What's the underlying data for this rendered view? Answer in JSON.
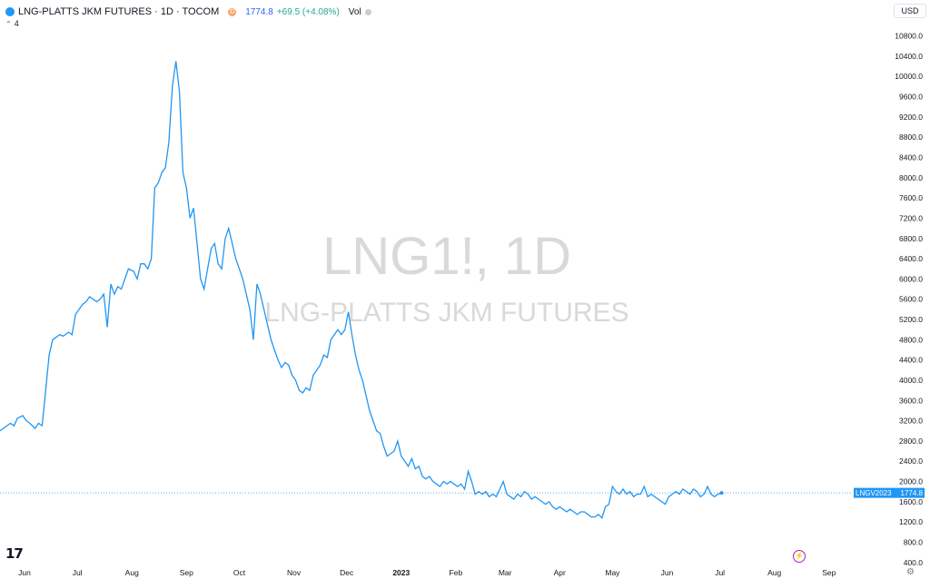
{
  "header": {
    "title": "LNG-PLATTS JKM FUTURES · 1D · TOCOM",
    "d_badge": "D",
    "price": "1774.8",
    "change": "+69.5 (+4.08%)",
    "vol": "Vol",
    "collapse_count": "4",
    "currency": "USD"
  },
  "watermark": {
    "line1": "LNG1!, 1D",
    "line2": "LNG-PLATTS JKM FUTURES"
  },
  "price_label": {
    "symbol": "LNGV2023",
    "value": "1774.8"
  },
  "colors": {
    "line": "#2196f3",
    "label_bg": "#2196f3",
    "watermark": "#d9d9d9",
    "axis_text": "#131722"
  },
  "icons": [
    "tradingview-logo-icon",
    "lightning-icon",
    "settings-icon"
  ],
  "chart_data": {
    "type": "line",
    "title": "",
    "xlabel": "",
    "ylabel": "",
    "ylim": [
      400,
      11000
    ],
    "y_ticks": [
      400,
      800,
      1200,
      1600,
      2000,
      2400,
      2800,
      3200,
      3600,
      4000,
      4400,
      4800,
      5200,
      5600,
      6000,
      6400,
      6800,
      7200,
      7600,
      8000,
      8400,
      8800,
      9200,
      9600,
      10000,
      10400,
      10800
    ],
    "x_ticks": [
      {
        "label": "Jun",
        "date": "2022-06-01"
      },
      {
        "label": "Jul",
        "date": "2022-07-01"
      },
      {
        "label": "Aug",
        "date": "2022-08-01"
      },
      {
        "label": "Sep",
        "date": "2022-09-01"
      },
      {
        "label": "Oct",
        "date": "2022-10-01"
      },
      {
        "label": "Nov",
        "date": "2022-11-01"
      },
      {
        "label": "Dec",
        "date": "2022-12-01"
      },
      {
        "label": "2023",
        "date": "2023-01-01",
        "bold": true
      },
      {
        "label": "Feb",
        "date": "2023-02-01"
      },
      {
        "label": "Mar",
        "date": "2023-03-01"
      },
      {
        "label": "Apr",
        "date": "2023-04-01"
      },
      {
        "label": "May",
        "date": "2023-05-01"
      },
      {
        "label": "Jun",
        "date": "2023-06-01"
      },
      {
        "label": "Jul",
        "date": "2023-07-01"
      },
      {
        "label": "Aug",
        "date": "2023-08-01"
      },
      {
        "label": "Sep",
        "date": "2023-09-01"
      }
    ],
    "last_value": 1774.8,
    "series": [
      {
        "name": "LNGV2023",
        "points": [
          [
            "2022-05-18",
            3000
          ],
          [
            "2022-05-20",
            3050
          ],
          [
            "2022-05-24",
            3150
          ],
          [
            "2022-05-26",
            3100
          ],
          [
            "2022-05-28",
            3250
          ],
          [
            "2022-05-31",
            3300
          ],
          [
            "2022-06-02",
            3200
          ],
          [
            "2022-06-04",
            3150
          ],
          [
            "2022-06-07",
            3050
          ],
          [
            "2022-06-09",
            3150
          ],
          [
            "2022-06-11",
            3100
          ],
          [
            "2022-06-13",
            3800
          ],
          [
            "2022-06-15",
            4500
          ],
          [
            "2022-06-17",
            4800
          ],
          [
            "2022-06-19",
            4850
          ],
          [
            "2022-06-21",
            4900
          ],
          [
            "2022-06-23",
            4870
          ],
          [
            "2022-06-26",
            4950
          ],
          [
            "2022-06-28",
            4900
          ],
          [
            "2022-06-30",
            5300
          ],
          [
            "2022-07-02",
            5400
          ],
          [
            "2022-07-04",
            5500
          ],
          [
            "2022-07-06",
            5550
          ],
          [
            "2022-07-08",
            5650
          ],
          [
            "2022-07-10",
            5600
          ],
          [
            "2022-07-12",
            5550
          ],
          [
            "2022-07-14",
            5600
          ],
          [
            "2022-07-16",
            5700
          ],
          [
            "2022-07-18",
            5050
          ],
          [
            "2022-07-20",
            5900
          ],
          [
            "2022-07-22",
            5700
          ],
          [
            "2022-07-24",
            5850
          ],
          [
            "2022-07-26",
            5800
          ],
          [
            "2022-07-28",
            6000
          ],
          [
            "2022-07-30",
            6200
          ],
          [
            "2022-08-02",
            6150
          ],
          [
            "2022-08-04",
            6000
          ],
          [
            "2022-08-06",
            6300
          ],
          [
            "2022-08-08",
            6300
          ],
          [
            "2022-08-10",
            6200
          ],
          [
            "2022-08-12",
            6400
          ],
          [
            "2022-08-14",
            7800
          ],
          [
            "2022-08-16",
            7900
          ],
          [
            "2022-08-18",
            8100
          ],
          [
            "2022-08-20",
            8200
          ],
          [
            "2022-08-22",
            8700
          ],
          [
            "2022-08-24",
            9800
          ],
          [
            "2022-08-26",
            10300
          ],
          [
            "2022-08-28",
            9700
          ],
          [
            "2022-08-30",
            8100
          ],
          [
            "2022-09-01",
            7800
          ],
          [
            "2022-09-03",
            7200
          ],
          [
            "2022-09-05",
            7400
          ],
          [
            "2022-09-07",
            6700
          ],
          [
            "2022-09-09",
            6000
          ],
          [
            "2022-09-11",
            5800
          ],
          [
            "2022-09-13",
            6200
          ],
          [
            "2022-09-15",
            6600
          ],
          [
            "2022-09-17",
            6700
          ],
          [
            "2022-09-19",
            6300
          ],
          [
            "2022-09-21",
            6200
          ],
          [
            "2022-09-23",
            6800
          ],
          [
            "2022-09-25",
            7000
          ],
          [
            "2022-09-27",
            6700
          ],
          [
            "2022-09-29",
            6400
          ],
          [
            "2022-10-01",
            6200
          ],
          [
            "2022-10-03",
            6000
          ],
          [
            "2022-10-05",
            5700
          ],
          [
            "2022-10-07",
            5400
          ],
          [
            "2022-10-09",
            4800
          ],
          [
            "2022-10-11",
            5900
          ],
          [
            "2022-10-13",
            5700
          ],
          [
            "2022-10-15",
            5400
          ],
          [
            "2022-10-17",
            5100
          ],
          [
            "2022-10-19",
            4800
          ],
          [
            "2022-10-21",
            4600
          ],
          [
            "2022-10-23",
            4400
          ],
          [
            "2022-10-25",
            4250
          ],
          [
            "2022-10-27",
            4350
          ],
          [
            "2022-10-29",
            4300
          ],
          [
            "2022-10-31",
            4100
          ],
          [
            "2022-11-02",
            4000
          ],
          [
            "2022-11-04",
            3800
          ],
          [
            "2022-11-06",
            3750
          ],
          [
            "2022-11-08",
            3850
          ],
          [
            "2022-11-10",
            3800
          ],
          [
            "2022-11-12",
            4100
          ],
          [
            "2022-11-14",
            4200
          ],
          [
            "2022-11-16",
            4300
          ],
          [
            "2022-11-18",
            4500
          ],
          [
            "2022-11-20",
            4450
          ],
          [
            "2022-11-22",
            4800
          ],
          [
            "2022-11-24",
            4900
          ],
          [
            "2022-11-26",
            5000
          ],
          [
            "2022-11-28",
            4900
          ],
          [
            "2022-11-30",
            5000
          ],
          [
            "2022-12-02",
            5350
          ],
          [
            "2022-12-04",
            4900
          ],
          [
            "2022-12-06",
            4500
          ],
          [
            "2022-12-08",
            4200
          ],
          [
            "2022-12-10",
            4000
          ],
          [
            "2022-12-12",
            3700
          ],
          [
            "2022-12-14",
            3400
          ],
          [
            "2022-12-16",
            3200
          ],
          [
            "2022-12-18",
            3000
          ],
          [
            "2022-12-20",
            2950
          ],
          [
            "2022-12-22",
            2700
          ],
          [
            "2022-12-24",
            2500
          ],
          [
            "2022-12-26",
            2550
          ],
          [
            "2022-12-28",
            2600
          ],
          [
            "2022-12-30",
            2800
          ],
          [
            "2023-01-01",
            2500
          ],
          [
            "2023-01-03",
            2400
          ],
          [
            "2023-01-05",
            2300
          ],
          [
            "2023-01-07",
            2450
          ],
          [
            "2023-01-09",
            2250
          ],
          [
            "2023-01-11",
            2300
          ],
          [
            "2023-01-13",
            2100
          ],
          [
            "2023-01-15",
            2050
          ],
          [
            "2023-01-17",
            2100
          ],
          [
            "2023-01-19",
            2000
          ],
          [
            "2023-01-21",
            1950
          ],
          [
            "2023-01-23",
            1900
          ],
          [
            "2023-01-25",
            2000
          ],
          [
            "2023-01-27",
            1950
          ],
          [
            "2023-01-29",
            2000
          ],
          [
            "2023-01-31",
            1950
          ],
          [
            "2023-02-02",
            1900
          ],
          [
            "2023-02-04",
            1950
          ],
          [
            "2023-02-06",
            1850
          ],
          [
            "2023-02-08",
            2200
          ],
          [
            "2023-02-10",
            2000
          ],
          [
            "2023-02-12",
            1750
          ],
          [
            "2023-02-14",
            1800
          ],
          [
            "2023-02-16",
            1750
          ],
          [
            "2023-02-18",
            1800
          ],
          [
            "2023-02-20",
            1700
          ],
          [
            "2023-02-22",
            1750
          ],
          [
            "2023-02-24",
            1700
          ],
          [
            "2023-02-26",
            1850
          ],
          [
            "2023-02-28",
            2000
          ],
          [
            "2023-03-02",
            1750
          ],
          [
            "2023-03-04",
            1700
          ],
          [
            "2023-03-06",
            1650
          ],
          [
            "2023-03-08",
            1750
          ],
          [
            "2023-03-10",
            1700
          ],
          [
            "2023-03-12",
            1800
          ],
          [
            "2023-03-14",
            1750
          ],
          [
            "2023-03-16",
            1650
          ],
          [
            "2023-03-18",
            1700
          ],
          [
            "2023-03-20",
            1650
          ],
          [
            "2023-03-22",
            1600
          ],
          [
            "2023-03-24",
            1550
          ],
          [
            "2023-03-26",
            1600
          ],
          [
            "2023-03-28",
            1500
          ],
          [
            "2023-03-30",
            1450
          ],
          [
            "2023-04-01",
            1500
          ],
          [
            "2023-04-03",
            1450
          ],
          [
            "2023-04-05",
            1400
          ],
          [
            "2023-04-07",
            1450
          ],
          [
            "2023-04-09",
            1400
          ],
          [
            "2023-04-11",
            1350
          ],
          [
            "2023-04-13",
            1400
          ],
          [
            "2023-04-15",
            1400
          ],
          [
            "2023-04-17",
            1350
          ],
          [
            "2023-04-19",
            1300
          ],
          [
            "2023-04-21",
            1300
          ],
          [
            "2023-04-23",
            1350
          ],
          [
            "2023-04-25",
            1280
          ],
          [
            "2023-04-27",
            1500
          ],
          [
            "2023-04-29",
            1550
          ],
          [
            "2023-05-01",
            1900
          ],
          [
            "2023-05-03",
            1800
          ],
          [
            "2023-05-05",
            1750
          ],
          [
            "2023-05-07",
            1850
          ],
          [
            "2023-05-09",
            1750
          ],
          [
            "2023-05-11",
            1800
          ],
          [
            "2023-05-13",
            1700
          ],
          [
            "2023-05-15",
            1750
          ],
          [
            "2023-05-17",
            1750
          ],
          [
            "2023-05-19",
            1900
          ],
          [
            "2023-05-21",
            1700
          ],
          [
            "2023-05-23",
            1750
          ],
          [
            "2023-05-25",
            1700
          ],
          [
            "2023-05-27",
            1650
          ],
          [
            "2023-05-29",
            1600
          ],
          [
            "2023-05-31",
            1550
          ],
          [
            "2023-06-02",
            1700
          ],
          [
            "2023-06-04",
            1750
          ],
          [
            "2023-06-06",
            1800
          ],
          [
            "2023-06-08",
            1750
          ],
          [
            "2023-06-10",
            1850
          ],
          [
            "2023-06-12",
            1800
          ],
          [
            "2023-06-14",
            1750
          ],
          [
            "2023-06-16",
            1850
          ],
          [
            "2023-06-18",
            1800
          ],
          [
            "2023-06-20",
            1700
          ],
          [
            "2023-06-22",
            1750
          ],
          [
            "2023-06-24",
            1900
          ],
          [
            "2023-06-26",
            1750
          ],
          [
            "2023-06-28",
            1700
          ],
          [
            "2023-06-30",
            1750
          ],
          [
            "2023-07-02",
            1774.8
          ]
        ]
      }
    ]
  }
}
